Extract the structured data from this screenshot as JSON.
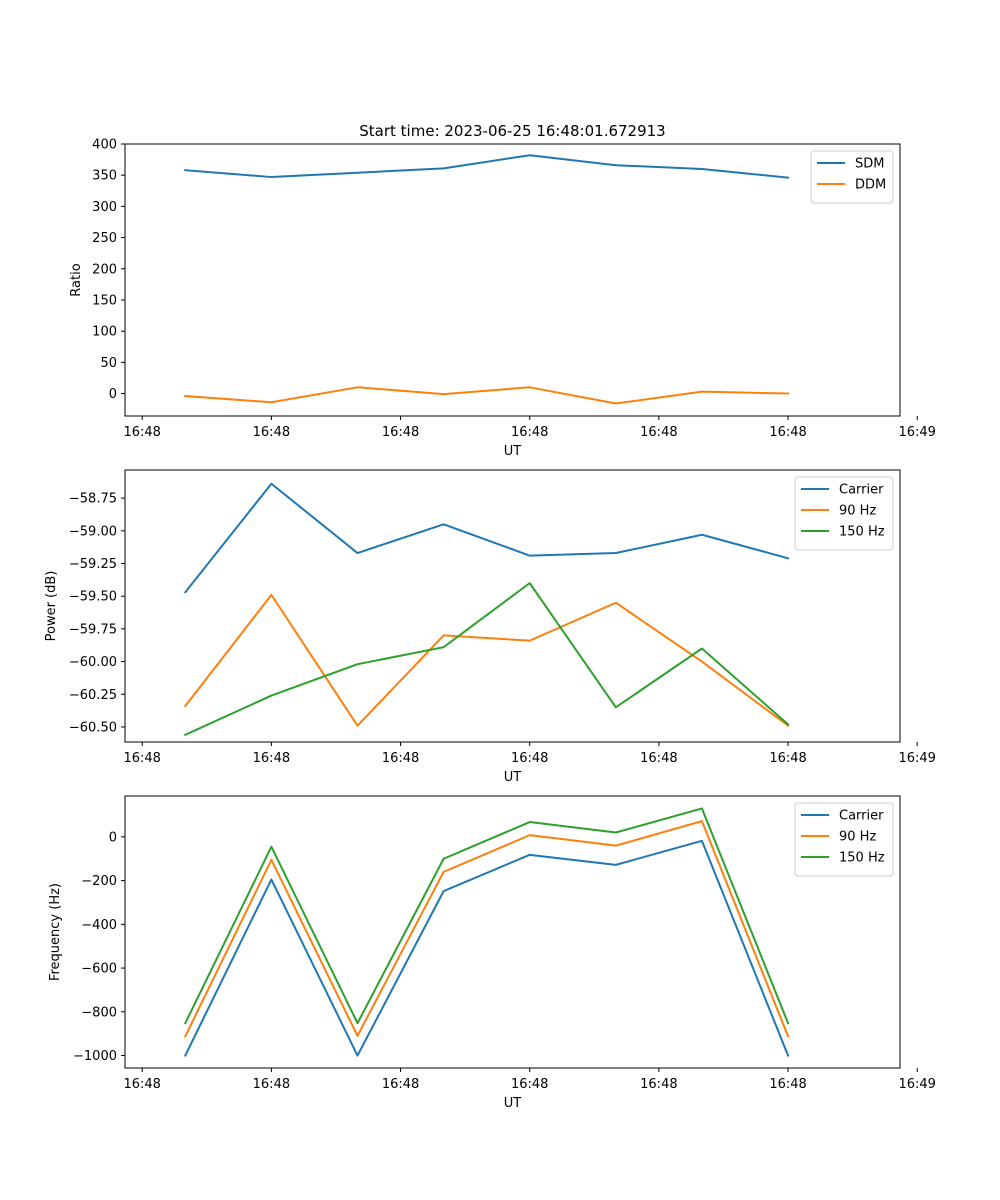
{
  "colors": {
    "blue": "#1f77b4",
    "orange": "#ff7f0e",
    "green": "#2ca02c"
  },
  "chart_data": [
    {
      "type": "line",
      "title": "Start time: 2023-06-25 16:48:01.672913",
      "xlabel": "UT",
      "ylabel": "Ratio",
      "x": [
        1,
        2,
        3,
        4,
        5,
        6,
        7,
        8
      ],
      "xlim": [
        0.3,
        9.3
      ],
      "xticks": [
        0.5,
        2,
        3.5,
        5,
        6.5,
        8,
        9.5
      ],
      "xtick_labels": [
        "16:48",
        "16:48",
        "16:48",
        "16:48",
        "16:48",
        "16:48",
        "16:49"
      ],
      "ylim": [
        -36,
        400
      ],
      "yticks": [
        0,
        50,
        100,
        150,
        200,
        250,
        300,
        350,
        400
      ],
      "ytick_labels": [
        "0",
        "50",
        "100",
        "150",
        "200",
        "250",
        "300",
        "350",
        "400"
      ],
      "legend": "top-right",
      "series": [
        {
          "name": "SDM",
          "color": "#1f77b4",
          "values": [
            358,
            347,
            354,
            361,
            382,
            366,
            360,
            346
          ]
        },
        {
          "name": "DDM",
          "color": "#ff7f0e",
          "values": [
            -4,
            -14,
            10,
            -1,
            10,
            -16,
            3,
            0
          ]
        }
      ]
    },
    {
      "type": "line",
      "xlabel": "UT",
      "ylabel": "Power (dB)",
      "x": [
        1,
        2,
        3,
        4,
        5,
        6,
        7,
        8
      ],
      "xlim": [
        0.3,
        9.3
      ],
      "xticks": [
        0.5,
        2,
        3.5,
        5,
        6.5,
        8,
        9.5
      ],
      "xtick_labels": [
        "16:48",
        "16:48",
        "16:48",
        "16:48",
        "16:48",
        "16:48",
        "16:49"
      ],
      "ylim": [
        -60.615,
        -58.535
      ],
      "yticks": [
        -58.75,
        -59.0,
        -59.25,
        -59.5,
        -59.75,
        -60.0,
        -60.25,
        -60.5
      ],
      "ytick_labels": [
        "−58.75",
        "−59.00",
        "−59.25",
        "−59.50",
        "−59.75",
        "−60.00",
        "−60.25",
        "−60.50"
      ],
      "legend": "top-right",
      "series": [
        {
          "name": "Carrier",
          "color": "#1f77b4",
          "values": [
            -59.47,
            -58.64,
            -59.17,
            -58.95,
            -59.19,
            -59.17,
            -59.03,
            -59.21
          ]
        },
        {
          "name": "90 Hz",
          "color": "#ff7f0e",
          "values": [
            -60.34,
            -59.49,
            -60.49,
            -59.8,
            -59.84,
            -59.55,
            -60.0,
            -60.49
          ]
        },
        {
          "name": "150 Hz",
          "color": "#2ca02c",
          "values": [
            -60.56,
            -60.26,
            -60.02,
            -59.89,
            -59.4,
            -60.35,
            -59.9,
            -60.48
          ]
        }
      ]
    },
    {
      "type": "line",
      "xlabel": "UT",
      "ylabel": "Frequency (Hz)",
      "x": [
        1,
        2,
        3,
        4,
        5,
        6,
        7,
        8
      ],
      "xlim": [
        0.3,
        9.3
      ],
      "xticks": [
        0.5,
        2,
        3.5,
        5,
        6.5,
        8,
        9.5
      ],
      "xtick_labels": [
        "16:48",
        "16:48",
        "16:48",
        "16:48",
        "16:48",
        "16:48",
        "16:49"
      ],
      "ylim": [
        -1057,
        187
      ],
      "yticks": [
        0,
        -200,
        -400,
        -600,
        -800,
        -1000
      ],
      "ytick_labels": [
        "0",
        "−200",
        "−400",
        "−600",
        "−800",
        "−1000"
      ],
      "legend": "top-right",
      "series": [
        {
          "name": "Carrier",
          "color": "#1f77b4",
          "values": [
            -1000,
            -195,
            -1000,
            -248,
            -82,
            -128,
            -18,
            -1000
          ]
        },
        {
          "name": "90 Hz",
          "color": "#ff7f0e",
          "values": [
            -912,
            -105,
            -910,
            -160,
            8,
            -40,
            72,
            -912
          ]
        },
        {
          "name": "150 Hz",
          "color": "#2ca02c",
          "values": [
            -852,
            -45,
            -852,
            -100,
            68,
            20,
            130,
            -852
          ]
        }
      ]
    }
  ]
}
